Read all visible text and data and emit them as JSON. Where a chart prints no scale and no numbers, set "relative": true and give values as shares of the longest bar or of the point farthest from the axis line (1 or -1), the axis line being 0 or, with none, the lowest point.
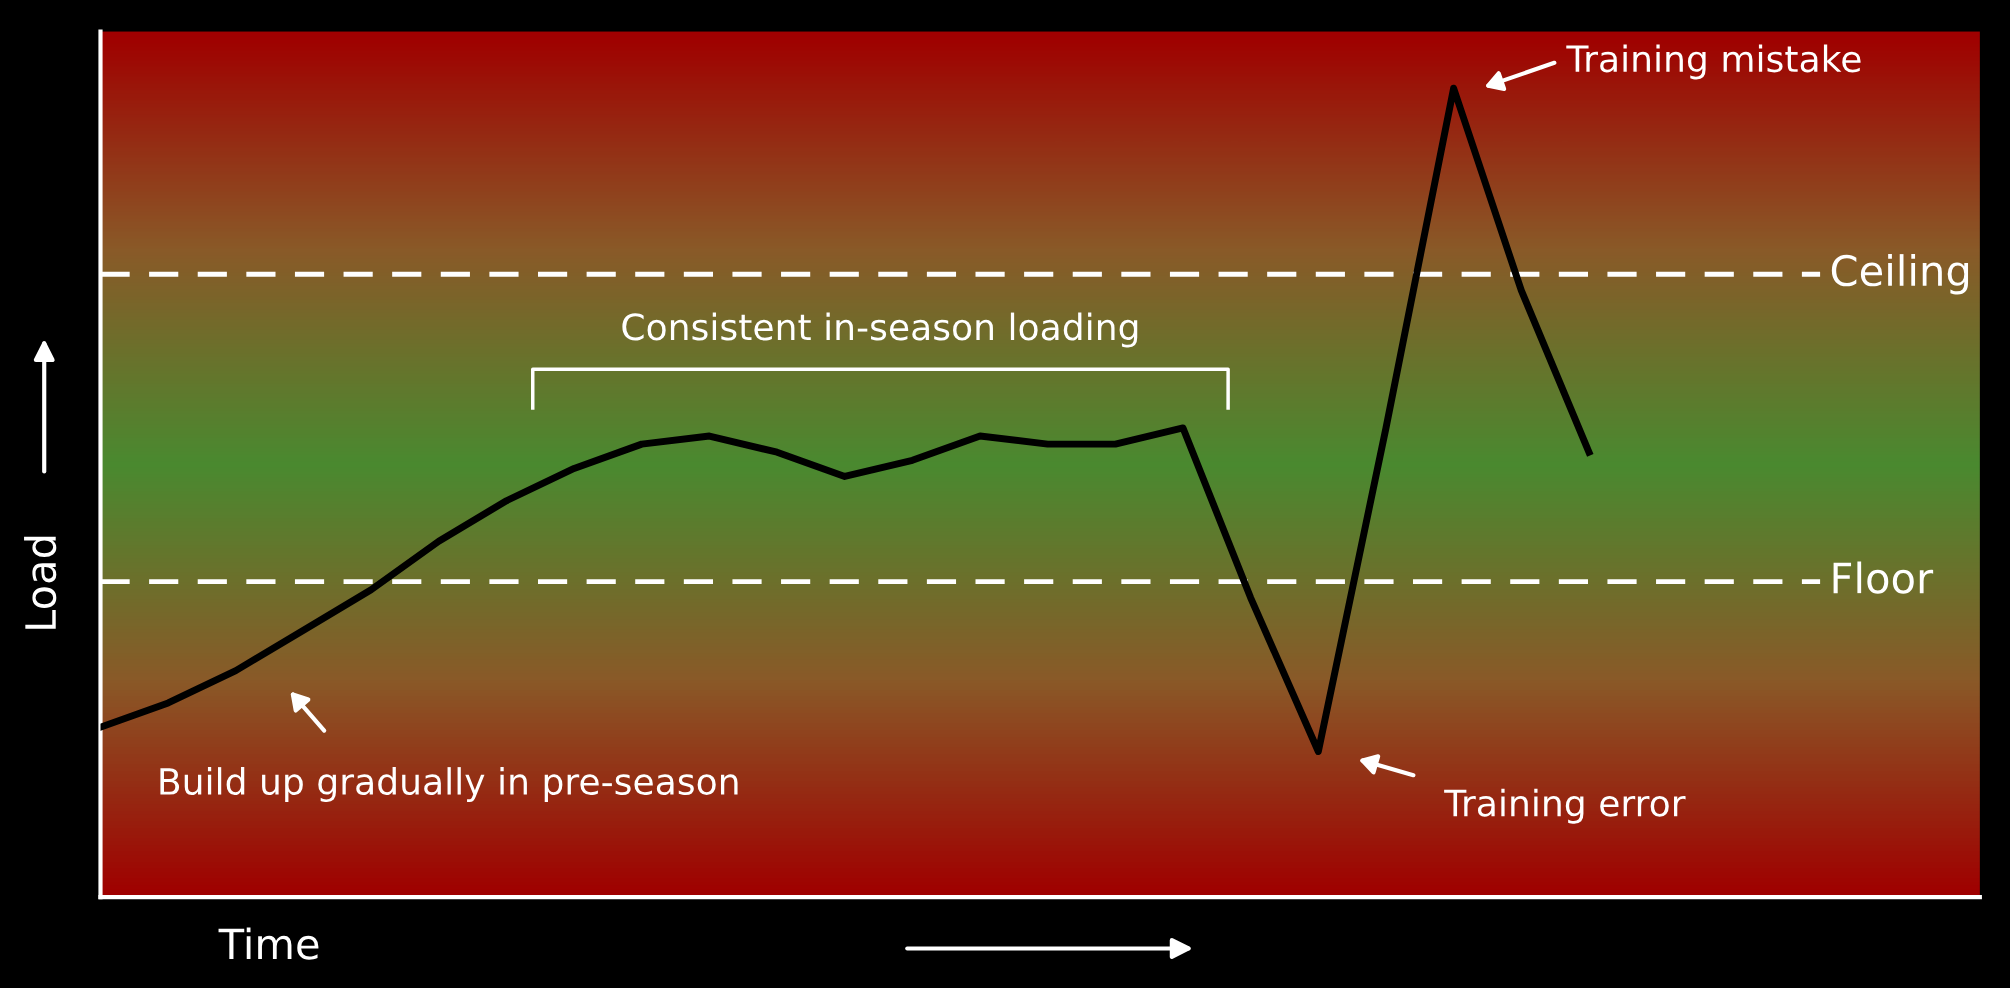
{
  "chart_data": {
    "type": "line",
    "relative": true,
    "xlabel": "Time",
    "ylabel": "Load",
    "marker": "none",
    "line_style": "solid",
    "categories": [
      null,
      null,
      null,
      null,
      null,
      null,
      null,
      null,
      null,
      null,
      null,
      null,
      null,
      null,
      null,
      null,
      null,
      null,
      null,
      null,
      null,
      null,
      null
    ],
    "series": [
      {
        "color": "#000000",
        "values": [
          0.21,
          0.24,
          0.28,
          0.33,
          0.38,
          0.44,
          0.49,
          0.53,
          0.56,
          0.57,
          0.55,
          0.52,
          0.54,
          0.57,
          0.56,
          0.56,
          0.58,
          0.37,
          0.18,
          0.58,
          1.0,
          0.75,
          0.55
        ]
      }
    ],
    "ref_lines": [
      {
        "axis": "y",
        "value": 0.77,
        "label": "Ceiling",
        "color": "#ffffff",
        "line_style": "dashed"
      },
      {
        "axis": "y",
        "value": 0.39,
        "label": "Floor",
        "color": "#ffffff",
        "line_style": "dashed"
      }
    ],
    "annotations": [
      "Training mistake",
      "Training error",
      "Build up gradually in pre-season",
      "Consistent in-season loading"
    ]
  }
}
